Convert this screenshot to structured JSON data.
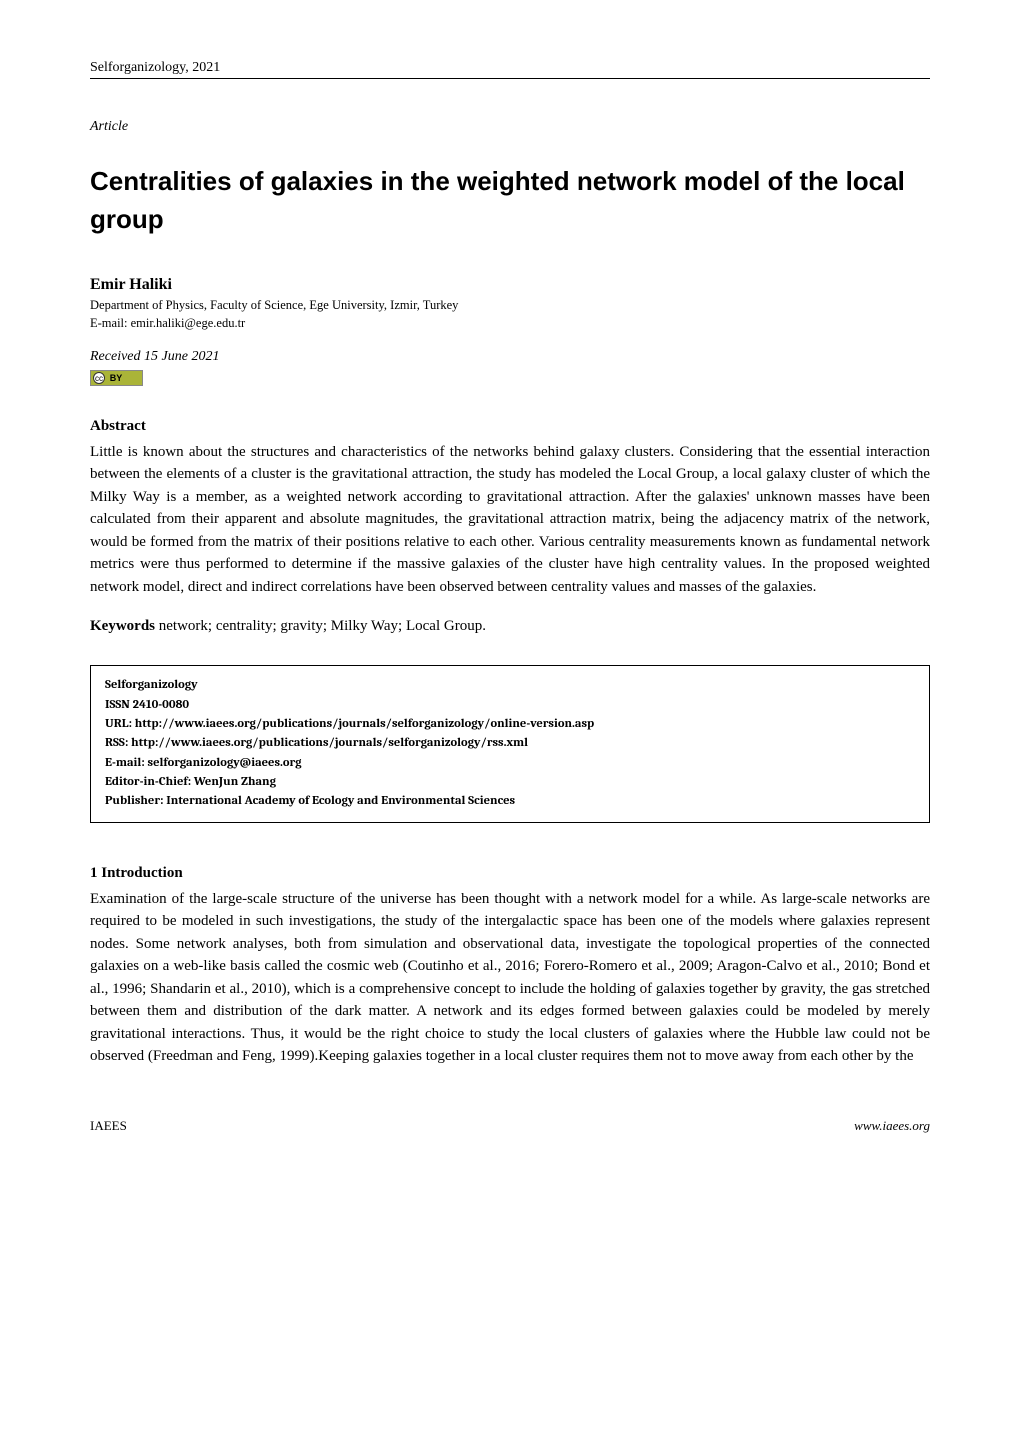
{
  "header": {
    "journal": "Selforganizology, 2021"
  },
  "article_label": "Article",
  "title": "Centralities of galaxies in the weighted network model of the local group",
  "author": {
    "name": "Emir Haliki",
    "affiliation": "Department of Physics, Faculty of Science, Ege University, Izmir, Turkey",
    "email": "E-mail: emir.haliki@ege.edu.tr"
  },
  "received": "Received 15 June 2021",
  "cc": {
    "circle": "cc",
    "by": "BY"
  },
  "abstract": {
    "heading": "Abstract",
    "text": "Little is known about the structures and characteristics of the networks behind galaxy clusters. Considering that the essential interaction between the elements of a cluster is the gravitational attraction, the study has modeled the Local Group, a local galaxy cluster of which the Milky Way is a member, as a weighted network according to gravitational attraction. After the galaxies' unknown masses have been calculated from their apparent and absolute magnitudes, the gravitational attraction matrix, being the adjacency matrix of the network, would be formed from the matrix of their positions relative to each other. Various centrality measurements known as fundamental network metrics were thus performed to determine if the massive galaxies of the cluster have high centrality values. In the proposed weighted network model, direct and indirect correlations have been observed between centrality values and masses of the galaxies."
  },
  "keywords": {
    "label": "Keywords",
    "text": " network; centrality; gravity; Milky Way; Local Group."
  },
  "pub_box": {
    "name": "Selforganizology",
    "issn": "ISSN 2410-0080",
    "url": "URL: http://www.iaees.org/publications/journals/selforganizology/online-version.asp",
    "rss": "RSS: http://www.iaees.org/publications/journals/selforganizology/rss.xml",
    "email": "E-mail: selforganizology@iaees.org",
    "editor": "Editor-in-Chief: WenJun Zhang",
    "publisher": "Publisher: International Academy of Ecology and Environmental Sciences"
  },
  "intro": {
    "heading": "1 Introduction",
    "text": "Examination of the large-scale structure of the universe has been thought with a network model for a while. As large-scale networks are required to be modeled in such investigations, the study of the intergalactic space has been one of the models where galaxies represent nodes. Some network analyses, both from simulation and observational data, investigate the topological properties of the connected galaxies on a web-like basis called the cosmic web (Coutinho et al., 2016; Forero-Romero et al., 2009; Aragon-Calvo et al., 2010; Bond et al., 1996; Shandarin et al., 2010), which is a comprehensive concept to include the holding of galaxies together by gravity, the gas stretched between them and distribution of the dark matter. A network and its edges formed between galaxies could be modeled by merely gravitational interactions. Thus, it would be the right choice to study the local clusters of galaxies where the Hubble law could not be observed (Freedman and Feng, 1999).Keeping galaxies together in a local cluster requires them not to move away from each other by the"
  },
  "footer": {
    "left": "IAEES",
    "right": "www.iaees.org"
  }
}
